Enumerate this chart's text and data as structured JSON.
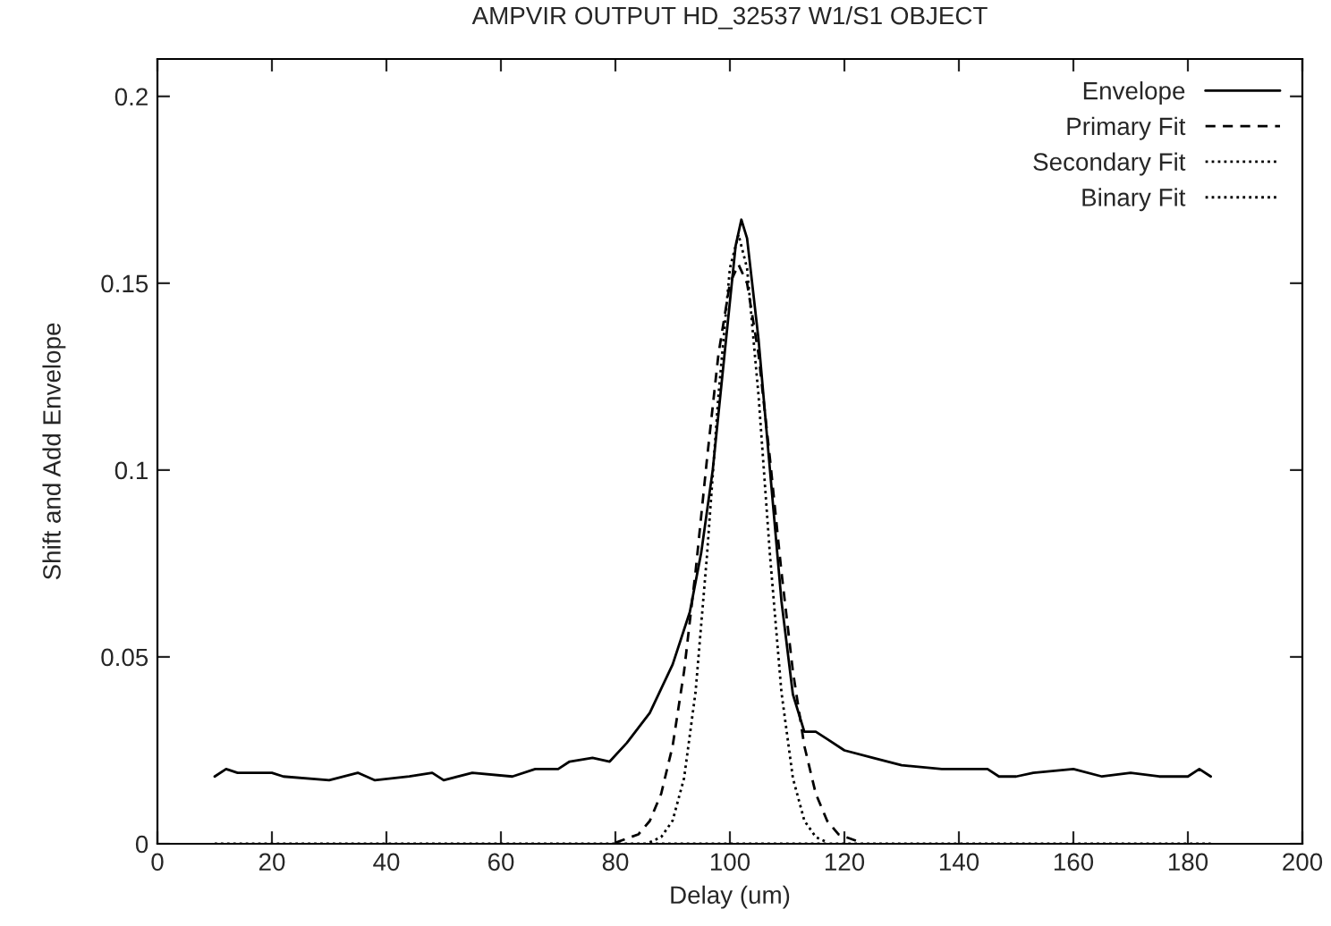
{
  "chart_data": {
    "type": "line",
    "title": "AMPVIR OUTPUT HD_32537 W1/S1 OBJECT",
    "xlabel": "Delay (um)",
    "ylabel": "Shift and Add Envelope",
    "xlim": [
      0,
      200
    ],
    "xticks": [
      0,
      20,
      40,
      60,
      80,
      100,
      120,
      140,
      160,
      180,
      200
    ],
    "ylim": [
      0,
      0.21
    ],
    "yticks": [
      0,
      0.05,
      0.1,
      0.15,
      0.2
    ],
    "grid": false,
    "legend": "top right",
    "marker": "none",
    "series": [
      {
        "name": "Envelope",
        "color": "#000000",
        "line_style": "solid",
        "x": [
          10,
          12,
          14,
          20,
          22,
          30,
          35,
          38,
          44,
          48,
          50,
          55,
          62,
          66,
          70,
          72,
          76,
          79,
          82,
          86,
          90,
          93,
          95,
          97,
          99,
          101,
          102,
          103,
          105,
          107,
          109,
          111,
          113,
          115,
          117,
          120,
          125,
          130,
          137,
          145,
          147,
          150,
          153,
          160,
          165,
          170,
          175,
          180,
          182,
          184
        ],
        "values": [
          0.018,
          0.02,
          0.019,
          0.019,
          0.018,
          0.017,
          0.019,
          0.017,
          0.018,
          0.019,
          0.017,
          0.019,
          0.018,
          0.02,
          0.02,
          0.022,
          0.023,
          0.022,
          0.027,
          0.035,
          0.048,
          0.062,
          0.078,
          0.1,
          0.13,
          0.16,
          0.167,
          0.162,
          0.135,
          0.1,
          0.065,
          0.04,
          0.03,
          0.03,
          0.028,
          0.025,
          0.023,
          0.021,
          0.02,
          0.02,
          0.018,
          0.018,
          0.019,
          0.02,
          0.018,
          0.019,
          0.018,
          0.018,
          0.02,
          0.018
        ]
      },
      {
        "name": "Primary Fit",
        "color": "#000000",
        "line_style": "dashed",
        "x": [
          80,
          84,
          86,
          88,
          90,
          92,
          94,
          96,
          98,
          100,
          101.5,
          103,
          105,
          107,
          109,
          111,
          113,
          115,
          117,
          119,
          123
        ],
        "values": [
          0.0003,
          0.0025,
          0.0061,
          0.0134,
          0.0262,
          0.0462,
          0.0728,
          0.103,
          0.131,
          0.15,
          0.155,
          0.15,
          0.131,
          0.103,
          0.0728,
          0.0462,
          0.0262,
          0.0134,
          0.0061,
          0.0025,
          0.0003
        ]
      },
      {
        "name": "Secondary Fit",
        "color": "#000000",
        "line_style": "dotted",
        "x": [
          10,
          184
        ],
        "values": [
          0,
          0
        ]
      },
      {
        "name": "Binary Fit",
        "color": "#000000",
        "line_style": "dotted",
        "x": [
          86,
          88,
          90,
          92,
          94,
          96,
          98,
          100,
          101.5,
          103,
          105,
          107,
          109,
          111,
          113,
          115,
          117
        ],
        "values": [
          0.0004,
          0.0018,
          0.0062,
          0.0176,
          0.0406,
          0.0772,
          0.12,
          0.154,
          0.163,
          0.154,
          0.12,
          0.0772,
          0.0406,
          0.0176,
          0.0062,
          0.0018,
          0.0004
        ]
      }
    ]
  }
}
